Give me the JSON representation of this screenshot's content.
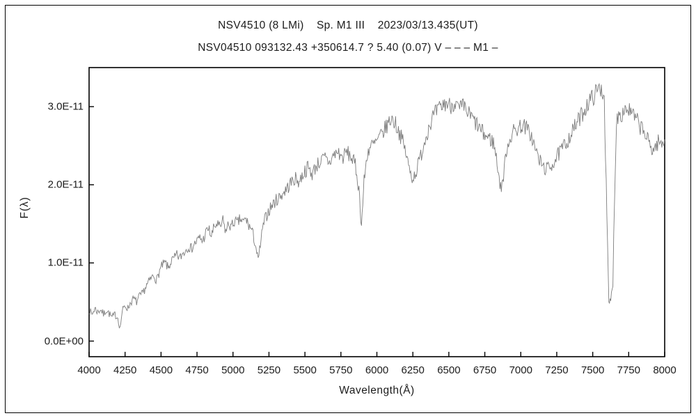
{
  "header": {
    "title": "NSV4510 (8 LMi)    Sp. M1 III    2023/03/13.435(UT)",
    "subtitle": "NSV04510 093132.43 +350614.7 ? 5.40 (0.07) V – – – M1 –"
  },
  "chart_data": {
    "type": "line",
    "title": "NSV4510 (8 LMi)  Sp. M1 III  2023/03/13.435(UT)",
    "xlabel": "Wavelength(Å)",
    "ylabel": "F(λ)",
    "xlim": [
      4000,
      8000
    ],
    "ylim_scaled": [
      -0.2,
      3.5
    ],
    "flux_scale": "1e-11",
    "x_ticks": [
      4000,
      4250,
      4500,
      4750,
      5000,
      5250,
      5500,
      5750,
      6000,
      6250,
      6500,
      6750,
      7000,
      7250,
      7500,
      7750,
      8000
    ],
    "y_ticks": [
      {
        "value": 0.0,
        "label": "0.0E+00"
      },
      {
        "value": 1.0,
        "label": "1.0E-11"
      },
      {
        "value": 2.0,
        "label": "2.0E-11"
      },
      {
        "value": 3.0,
        "label": "3.0E-11"
      }
    ],
    "grid": false,
    "legend": "none",
    "line_color": "#7d7d7d",
    "axis_color": "#000000",
    "noise_amplitude": 0.09,
    "noise_seed": 7,
    "sample_step": 5,
    "series": [
      {
        "name": "F(λ)",
        "note": "flux values in units of 1e-11; envelope of noisy observed spectrum",
        "envelope_points": [
          [
            4000,
            0.4
          ],
          [
            4020,
            0.34
          ],
          [
            4040,
            0.42
          ],
          [
            4060,
            0.37
          ],
          [
            4080,
            0.41
          ],
          [
            4100,
            0.34
          ],
          [
            4120,
            0.4
          ],
          [
            4140,
            0.35
          ],
          [
            4160,
            0.3
          ],
          [
            4180,
            0.34
          ],
          [
            4200,
            0.3
          ],
          [
            4215,
            0.16
          ],
          [
            4230,
            0.38
          ],
          [
            4250,
            0.45
          ],
          [
            4270,
            0.42
          ],
          [
            4290,
            0.5
          ],
          [
            4310,
            0.54
          ],
          [
            4330,
            0.5
          ],
          [
            4350,
            0.57
          ],
          [
            4370,
            0.6
          ],
          [
            4390,
            0.68
          ],
          [
            4410,
            0.74
          ],
          [
            4430,
            0.8
          ],
          [
            4450,
            0.84
          ],
          [
            4470,
            0.78
          ],
          [
            4490,
            0.9
          ],
          [
            4510,
            0.97
          ],
          [
            4530,
            1.0
          ],
          [
            4550,
            0.93
          ],
          [
            4570,
            1.02
          ],
          [
            4590,
            1.05
          ],
          [
            4610,
            1.1
          ],
          [
            4630,
            1.06
          ],
          [
            4650,
            1.12
          ],
          [
            4670,
            1.16
          ],
          [
            4690,
            1.22
          ],
          [
            4710,
            1.18
          ],
          [
            4730,
            1.24
          ],
          [
            4750,
            1.28
          ],
          [
            4770,
            1.32
          ],
          [
            4790,
            1.28
          ],
          [
            4810,
            1.38
          ],
          [
            4830,
            1.44
          ],
          [
            4850,
            1.34
          ],
          [
            4870,
            1.46
          ],
          [
            4890,
            1.5
          ],
          [
            4910,
            1.44
          ],
          [
            4930,
            1.54
          ],
          [
            4950,
            1.4
          ],
          [
            4970,
            1.5
          ],
          [
            4990,
            1.46
          ],
          [
            5010,
            1.54
          ],
          [
            5030,
            1.5
          ],
          [
            5050,
            1.56
          ],
          [
            5070,
            1.52
          ],
          [
            5090,
            1.56
          ],
          [
            5110,
            1.48
          ],
          [
            5130,
            1.42
          ],
          [
            5155,
            1.25
          ],
          [
            5175,
            1.02
          ],
          [
            5195,
            1.3
          ],
          [
            5215,
            1.52
          ],
          [
            5240,
            1.64
          ],
          [
            5265,
            1.72
          ],
          [
            5290,
            1.78
          ],
          [
            5315,
            1.83
          ],
          [
            5340,
            1.88
          ],
          [
            5370,
            1.94
          ],
          [
            5400,
            2.02
          ],
          [
            5430,
            2.08
          ],
          [
            5460,
            2.04
          ],
          [
            5490,
            2.15
          ],
          [
            5520,
            2.22
          ],
          [
            5550,
            2.14
          ],
          [
            5580,
            2.25
          ],
          [
            5610,
            2.3
          ],
          [
            5640,
            2.34
          ],
          [
            5670,
            2.28
          ],
          [
            5700,
            2.38
          ],
          [
            5730,
            2.42
          ],
          [
            5760,
            2.34
          ],
          [
            5790,
            2.42
          ],
          [
            5820,
            2.36
          ],
          [
            5850,
            2.25
          ],
          [
            5875,
            1.95
          ],
          [
            5893,
            1.48
          ],
          [
            5911,
            2.05
          ],
          [
            5935,
            2.42
          ],
          [
            5960,
            2.5
          ],
          [
            5985,
            2.52
          ],
          [
            6010,
            2.58
          ],
          [
            6040,
            2.66
          ],
          [
            6070,
            2.76
          ],
          [
            6100,
            2.85
          ],
          [
            6125,
            2.8
          ],
          [
            6150,
            2.7
          ],
          [
            6175,
            2.58
          ],
          [
            6200,
            2.42
          ],
          [
            6225,
            2.2
          ],
          [
            6250,
            2.08
          ],
          [
            6275,
            2.18
          ],
          [
            6300,
            2.34
          ],
          [
            6330,
            2.55
          ],
          [
            6360,
            2.74
          ],
          [
            6390,
            2.87
          ],
          [
            6420,
            2.94
          ],
          [
            6450,
            3.0
          ],
          [
            6480,
            3.05
          ],
          [
            6510,
            3.01
          ],
          [
            6540,
            3.06
          ],
          [
            6570,
            2.96
          ],
          [
            6600,
            3.0
          ],
          [
            6630,
            2.92
          ],
          [
            6660,
            2.86
          ],
          [
            6690,
            2.78
          ],
          [
            6720,
            2.7
          ],
          [
            6750,
            2.63
          ],
          [
            6780,
            2.6
          ],
          [
            6810,
            2.54
          ],
          [
            6835,
            2.3
          ],
          [
            6860,
            1.95
          ],
          [
            6880,
            2.1
          ],
          [
            6900,
            2.45
          ],
          [
            6925,
            2.6
          ],
          [
            6950,
            2.68
          ],
          [
            6980,
            2.72
          ],
          [
            7010,
            2.77
          ],
          [
            7040,
            2.72
          ],
          [
            7070,
            2.64
          ],
          [
            7100,
            2.46
          ],
          [
            7130,
            2.31
          ],
          [
            7160,
            2.22
          ],
          [
            7190,
            2.2
          ],
          [
            7220,
            2.27
          ],
          [
            7250,
            2.35
          ],
          [
            7280,
            2.44
          ],
          [
            7310,
            2.52
          ],
          [
            7340,
            2.62
          ],
          [
            7370,
            2.72
          ],
          [
            7400,
            2.82
          ],
          [
            7430,
            2.92
          ],
          [
            7460,
            3.02
          ],
          [
            7490,
            3.1
          ],
          [
            7515,
            3.16
          ],
          [
            7540,
            3.22
          ],
          [
            7560,
            3.24
          ],
          [
            7580,
            3.12
          ],
          [
            7598,
            1.6
          ],
          [
            7612,
            0.48
          ],
          [
            7625,
            0.52
          ],
          [
            7640,
            0.75
          ],
          [
            7652,
            1.9
          ],
          [
            7665,
            2.8
          ],
          [
            7680,
            2.93
          ],
          [
            7700,
            2.9
          ],
          [
            7725,
            2.98
          ],
          [
            7750,
            2.96
          ],
          [
            7775,
            2.9
          ],
          [
            7800,
            2.84
          ],
          [
            7825,
            2.76
          ],
          [
            7850,
            2.7
          ],
          [
            7875,
            2.6
          ],
          [
            7900,
            2.5
          ],
          [
            7920,
            2.44
          ],
          [
            7940,
            2.5
          ],
          [
            7960,
            2.56
          ],
          [
            7980,
            2.5
          ],
          [
            8000,
            2.58
          ]
        ]
      }
    ]
  }
}
